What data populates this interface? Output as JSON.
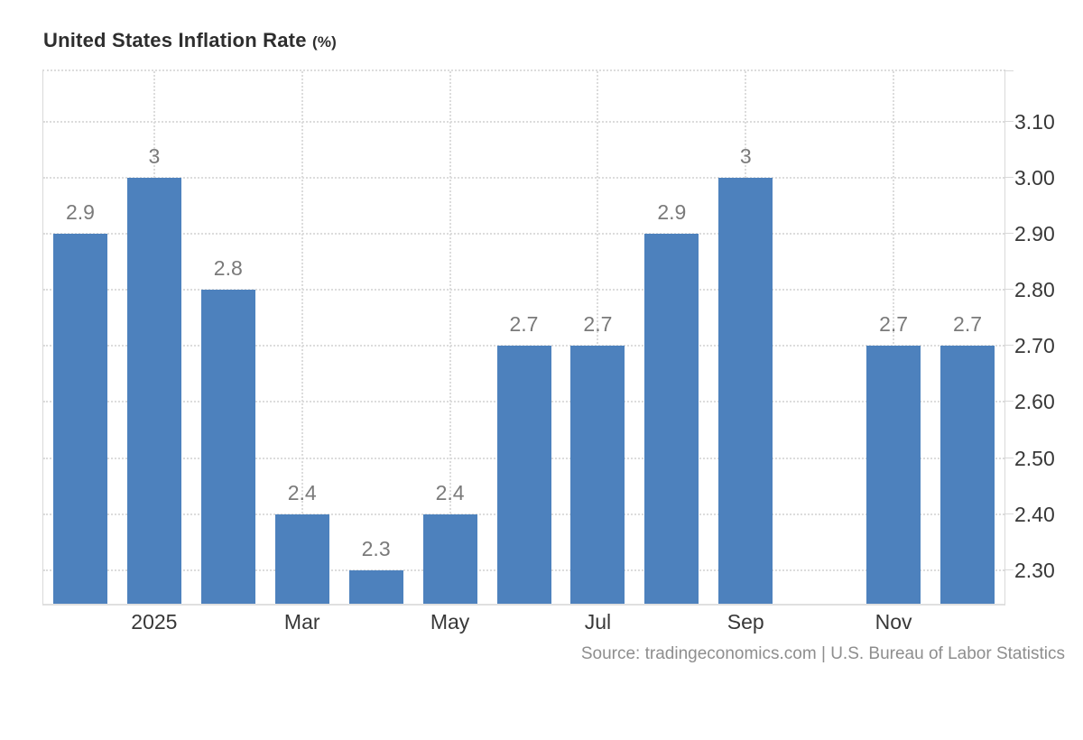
{
  "header": {
    "title": "United States Inflation Rate",
    "unit": "(%)"
  },
  "footer": {
    "source": "Source: tradingeconomics.com | U.S. Bureau of Labor Statistics"
  },
  "colors": {
    "bar": "#4d81bd",
    "grid_dotted": "#dcdcdc",
    "axis_line": "#d9d9d9",
    "axis_bottom": "#e0e0e0",
    "tick_label": "#383838",
    "value_label": "#7a7a7a",
    "title": "#2e2e2e",
    "source": "#8e8e8e"
  },
  "chart_data": {
    "type": "bar",
    "title": "United States Inflation Rate (%)",
    "xlabel": "",
    "ylabel": "",
    "legend": "none",
    "grid": "dotted",
    "y_axis_side": "right",
    "slot_count": 13,
    "values": [
      2.9,
      3,
      2.8,
      2.4,
      2.3,
      2.4,
      2.7,
      2.7,
      2.9,
      3,
      null,
      2.7,
      2.7
    ],
    "bar_labels": [
      "2.9",
      "3",
      "2.8",
      "2.4",
      "2.3",
      "2.4",
      "2.7",
      "2.7",
      "2.9",
      "3",
      null,
      "2.7",
      "2.7"
    ],
    "x_ticks": [
      {
        "slot": 1,
        "label": "2025"
      },
      {
        "slot": 3,
        "label": "Mar"
      },
      {
        "slot": 5,
        "label": "May"
      },
      {
        "slot": 7,
        "label": "Jul"
      },
      {
        "slot": 9,
        "label": "Sep"
      },
      {
        "slot": 11,
        "label": "Nov"
      }
    ],
    "y_ticks": [
      {
        "value": 2.3,
        "label": "2.30"
      },
      {
        "value": 2.4,
        "label": "2.40"
      },
      {
        "value": 2.5,
        "label": "2.50"
      },
      {
        "value": 2.6,
        "label": "2.60"
      },
      {
        "value": 2.7,
        "label": "2.70"
      },
      {
        "value": 2.8,
        "label": "2.80"
      },
      {
        "value": 2.9,
        "label": "2.90"
      },
      {
        "value": 3.0,
        "label": "3.00"
      },
      {
        "value": 3.1,
        "label": "3.10"
      }
    ],
    "ylim": [
      2.24,
      3.19
    ]
  }
}
